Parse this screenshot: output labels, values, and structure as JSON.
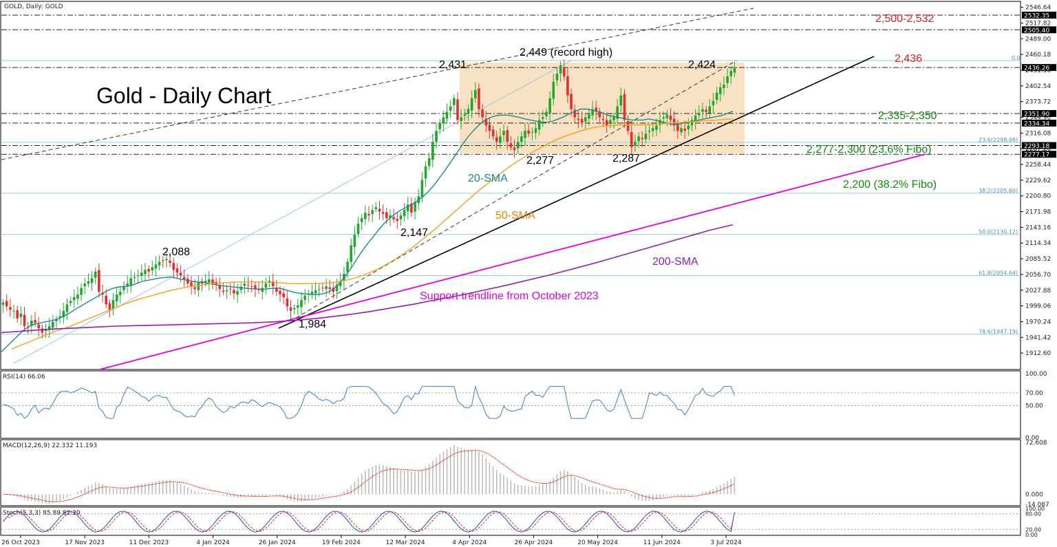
{
  "header": {
    "symbol_label": "GOLD, Daily:  GOLD"
  },
  "chart_title": "Gold - Daily Chart",
  "chart_data": {
    "type": "candlestick",
    "x_tick_labels": [
      "26 Oct 2023",
      "17 Nov 2023",
      "11 Dec 2023",
      "4 Jan 2024",
      "26 Jan 2024",
      "19 Feb 2024",
      "12 Mar 2024",
      "4 Apr 2024",
      "26 Apr 2024",
      "20 May 2024",
      "11 Jun 2024",
      "3 Jul 2024"
    ],
    "y_tick_labels": [
      "2546.64",
      "2517.82",
      "2489.00",
      "2460.18",
      "2431.36",
      "2402.54",
      "2373.72",
      "2344.90",
      "2316.08",
      "2287.26",
      "2258.44",
      "2229.62",
      "2200.80",
      "2171.98",
      "2143.16",
      "2114.34",
      "2085.52",
      "2056.70",
      "2027.88",
      "1999.06",
      "1970.24",
      "1941.42",
      "1912.60"
    ],
    "ylim": [
      1885,
      2555
    ],
    "price_tags": [
      "2532.35",
      "2505.40",
      "2436.26",
      "2351.90",
      "2334.34",
      "2293.18",
      "2277.17"
    ],
    "fibo_labels": [
      "0.0",
      "23.6|2298.98",
      "38.2|2205.60",
      "50.0|2130.12",
      "61.8|2054.64",
      "78.6|1947.19"
    ],
    "levels": {
      "resistance_top": "2,500-2,532",
      "resistance_current": "2,436",
      "support_1": "2,335-2,350",
      "support_2": "2,277-2,300 (23.6% Fibo)",
      "support_3": "2,200 (38.2% Fibo)"
    },
    "annotations": {
      "record_high": "2,449 (record high)",
      "peak_2431": "2,431",
      "peak_2424": "2,424",
      "low_2277": "2,277",
      "low_2287": "2,287",
      "low_2147": "2,147",
      "peak_2088": "2,088",
      "low_1984": "1,984",
      "sma20": "20-SMA",
      "sma50": "50-SMA",
      "sma200": "200-SMA",
      "trendline": "Support trendline from October 2023"
    },
    "close_series": [
      2005,
      1998,
      1992,
      1990,
      1976,
      1985,
      1962,
      1960,
      1972,
      1968,
      1958,
      1950,
      1955,
      1962,
      1970,
      1975,
      1980,
      1990,
      2002,
      2008,
      2015,
      2020,
      2032,
      2040,
      2044,
      2050,
      2062,
      2025,
      2020,
      2002,
      1992,
      2010,
      2020,
      2025,
      2035,
      2040,
      2050,
      2052,
      2055,
      2060,
      2065,
      2062,
      2070,
      2075,
      2080,
      2082,
      2085,
      2078,
      2065,
      2060,
      2055,
      2048,
      2040,
      2035,
      2030,
      2042,
      2040,
      2045,
      2048,
      2040,
      2038,
      2030,
      2025,
      2028,
      2030,
      2022,
      2026,
      2034,
      2040,
      2036,
      2034,
      2030,
      2028,
      2032,
      2040,
      2045,
      2035,
      2025,
      2020,
      2015,
      1998,
      1990,
      1995,
      2000,
      2010,
      2018,
      2022,
      2025,
      2028,
      2030,
      2032,
      2035,
      2030,
      2025,
      2038,
      2045,
      2058,
      2080,
      2110,
      2130,
      2150,
      2160,
      2170,
      2165,
      2175,
      2180,
      2172,
      2168,
      2160,
      2165,
      2158,
      2155,
      2165,
      2175,
      2185,
      2170,
      2190,
      2200,
      2230,
      2255,
      2270,
      2300,
      2320,
      2335,
      2345,
      2355,
      2365,
      2380,
      2340,
      2345,
      2350,
      2360,
      2380,
      2395,
      2360,
      2345,
      2330,
      2320,
      2310,
      2300,
      2310,
      2320,
      2300,
      2290,
      2285,
      2300,
      2310,
      2320,
      2315,
      2318,
      2325,
      2340,
      2345,
      2355,
      2380,
      2410,
      2425,
      2440,
      2420,
      2385,
      2360,
      2345,
      2340,
      2335,
      2345,
      2350,
      2360,
      2355,
      2345,
      2340,
      2330,
      2340,
      2345,
      2365,
      2385,
      2340,
      2320,
      2290,
      2300,
      2310,
      2305,
      2315,
      2320,
      2325,
      2330,
      2340,
      2345,
      2350,
      2340,
      2330,
      2320,
      2325,
      2320,
      2330,
      2340,
      2348,
      2352,
      2360,
      2355,
      2365,
      2375,
      2390,
      2400,
      2405,
      2420,
      2430,
      2436
    ],
    "sma20": [
      1915,
      1925,
      1935,
      1945,
      1955,
      1962,
      1966,
      1968,
      1970,
      1972,
      1975,
      1980,
      1985,
      1992,
      1998,
      2004,
      2010,
      2016,
      2022,
      2028,
      2032,
      2034,
      2035,
      2036,
      2040,
      2044,
      2046,
      2048,
      2050,
      2051,
      2052,
      2050,
      2048,
      2046,
      2044,
      2043,
      2042,
      2040,
      2038,
      2036,
      2035,
      2034,
      2033,
      2032,
      2031,
      2030,
      2030,
      2030,
      2031,
      2032,
      2030,
      2027,
      2024,
      2022,
      2021,
      2020,
      2020,
      2021,
      2024,
      2030,
      2040,
      2052,
      2066,
      2082,
      2098,
      2112,
      2125,
      2138,
      2150,
      2160,
      2168,
      2175,
      2180,
      2185,
      2192,
      2200,
      2210,
      2222,
      2236,
      2250,
      2265,
      2280,
      2296,
      2310,
      2322,
      2332,
      2340,
      2345,
      2348,
      2349,
      2349,
      2347,
      2345,
      2342,
      2340,
      2338,
      2336,
      2336,
      2338,
      2342,
      2346,
      2352,
      2356,
      2360,
      2360,
      2358,
      2356,
      2352,
      2348,
      2346,
      2344,
      2342,
      2340,
      2340,
      2340,
      2342,
      2340,
      2338,
      2335,
      2332,
      2332,
      2334,
      2336,
      2338,
      2340,
      2342,
      2344,
      2346,
      2348,
      2352,
      2356
    ],
    "sma50": [
      1920,
      1926,
      1932,
      1938,
      1944,
      1950,
      1955,
      1960,
      1966,
      1972,
      1978,
      1984,
      1990,
      1996,
      2002,
      2007,
      2012,
      2016,
      2020,
      2024,
      2028,
      2031,
      2034,
      2036,
      2038,
      2040,
      2041,
      2042,
      2043,
      2043,
      2043,
      2043,
      2042,
      2042,
      2041,
      2040,
      2040,
      2040,
      2040,
      2041,
      2042,
      2044,
      2047,
      2051,
      2056,
      2062,
      2069,
      2077,
      2086,
      2096,
      2106,
      2118,
      2130,
      2142,
      2155,
      2168,
      2181,
      2194,
      2207,
      2219,
      2230,
      2242,
      2253,
      2263,
      2272,
      2281,
      2289,
      2297,
      2304,
      2310,
      2315,
      2320,
      2324,
      2327,
      2329,
      2330,
      2331,
      2331,
      2331,
      2331,
      2332,
      2333,
      2334,
      2335,
      2336,
      2337,
      2338,
      2339,
      2340,
      2341,
      2342
    ],
    "sma200": [
      1950,
      1953,
      1956,
      1958,
      1960,
      1962,
      1963,
      1964,
      1965,
      1966,
      1967,
      1968,
      1970,
      1973,
      1977,
      1982,
      1988,
      1995,
      2002,
      2010,
      2018,
      2027,
      2036,
      2046,
      2056,
      2067,
      2078,
      2090,
      2102,
      2114,
      2126,
      2138,
      2148
    ],
    "rsi": {
      "label": "RSI(14) 66.06",
      "ticks": [
        "100.00",
        "70.00",
        "50.00",
        "0.00"
      ],
      "range": [
        0,
        100
      ],
      "last": 66.06
    },
    "macd": {
      "label": "MACD(12,26,9) 22.332 11.193",
      "ticks": [
        "72.608",
        "0.000",
        "-14.087"
      ],
      "range": [
        -14.087,
        72.608
      ]
    },
    "stoch": {
      "label": "Stoch(5,3,3) 85.89 82.20",
      "ticks": [
        "100.00",
        "80.00",
        "20.00",
        "0.00"
      ],
      "range": [
        0,
        100
      ]
    }
  }
}
